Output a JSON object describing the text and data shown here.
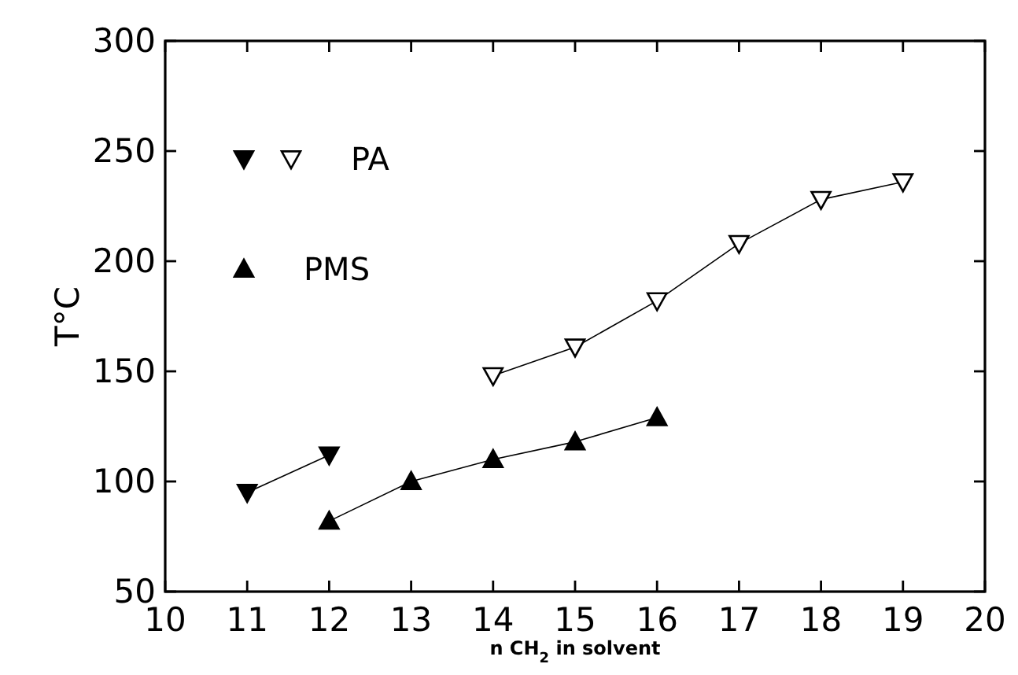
{
  "chart_data": {
    "type": "line",
    "xlabel": "n CH$_{2}$ in solvent",
    "ylabel": "T°C",
    "xlim": [
      10,
      20
    ],
    "xticks": [
      10,
      11,
      12,
      13,
      14,
      15,
      16,
      17,
      18,
      19,
      20
    ],
    "ylim": [
      50,
      300
    ],
    "yticks": [
      50,
      100,
      150,
      200,
      250,
      300
    ],
    "legend": "top left",
    "grid": false,
    "line_style": "solid",
    "series": [
      {
        "name": "PA",
        "color": "#000000",
        "marker": "triangle-down-open",
        "x": [
          14,
          15,
          16,
          17,
          18,
          19
        ],
        "values": [
          148,
          161,
          182,
          208,
          228,
          236
        ]
      },
      {
        "color": "#000000",
        "marker": "triangle-down",
        "x": [
          11,
          12
        ],
        "values": [
          95,
          112
        ]
      },
      {
        "name": "PMS",
        "color": "#000000",
        "marker": "triangle",
        "x": [
          12,
          13,
          14,
          15,
          16
        ],
        "values": [
          82,
          100,
          110,
          118,
          129
        ]
      }
    ]
  }
}
